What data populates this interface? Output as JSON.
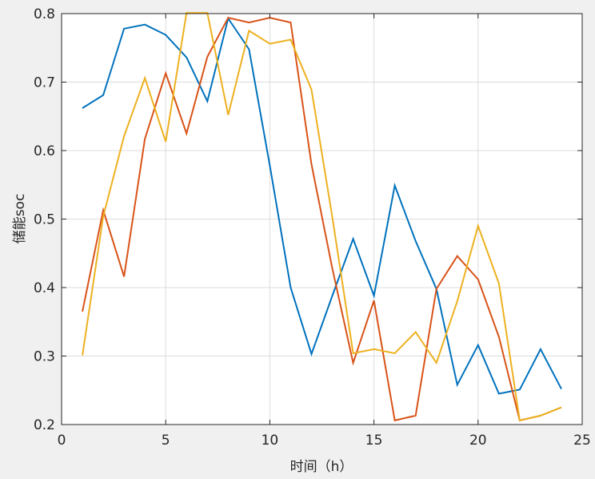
{
  "chart_data": {
    "type": "line",
    "title": "",
    "xlabel": "时间（h）",
    "ylabel": "储能soc",
    "xlim": [
      0,
      25
    ],
    "ylim": [
      0.2,
      0.8
    ],
    "xticks": [
      0,
      5,
      10,
      15,
      20,
      25
    ],
    "yticks": [
      0.2,
      0.3,
      0.4,
      0.5,
      0.6,
      0.7,
      0.8
    ],
    "xtick_labels": [
      "0",
      "5",
      "10",
      "15",
      "20",
      "25"
    ],
    "ytick_labels": [
      "0.2",
      "0.3",
      "0.4",
      "0.5",
      "0.6",
      "0.7",
      "0.8"
    ],
    "grid": true,
    "x": [
      1,
      2,
      3,
      4,
      5,
      6,
      7,
      8,
      9,
      10,
      11,
      12,
      13,
      14,
      15,
      16,
      17,
      18,
      19,
      20,
      21,
      22,
      23,
      24
    ],
    "series": [
      {
        "color": "#0072BD",
        "values": [
          0.662,
          0.681,
          0.778,
          0.784,
          0.769,
          0.736,
          0.672,
          0.793,
          0.748,
          0.578,
          0.4,
          0.303,
          0.388,
          0.471,
          0.388,
          0.549,
          0.468,
          0.398,
          0.258,
          0.316,
          0.245,
          0.251,
          0.31,
          0.252
        ]
      },
      {
        "color": "#D95319",
        "values": [
          0.365,
          0.513,
          0.416,
          0.617,
          0.713,
          0.625,
          0.737,
          0.794,
          0.787,
          0.794,
          0.787,
          0.58,
          0.428,
          0.29,
          0.381,
          0.206,
          0.213,
          0.398,
          0.446,
          0.412,
          0.328,
          0.206,
          0.213,
          0.225
        ]
      },
      {
        "color": "#EDB120",
        "values": [
          0.301,
          0.504,
          0.621,
          0.706,
          0.613,
          0.801,
          0.801,
          0.652,
          0.775,
          0.756,
          0.762,
          0.689,
          0.503,
          0.304,
          0.31,
          0.304,
          0.335,
          0.29,
          0.38,
          0.49,
          0.406,
          0.206,
          0.213,
          0.225
        ]
      }
    ]
  }
}
